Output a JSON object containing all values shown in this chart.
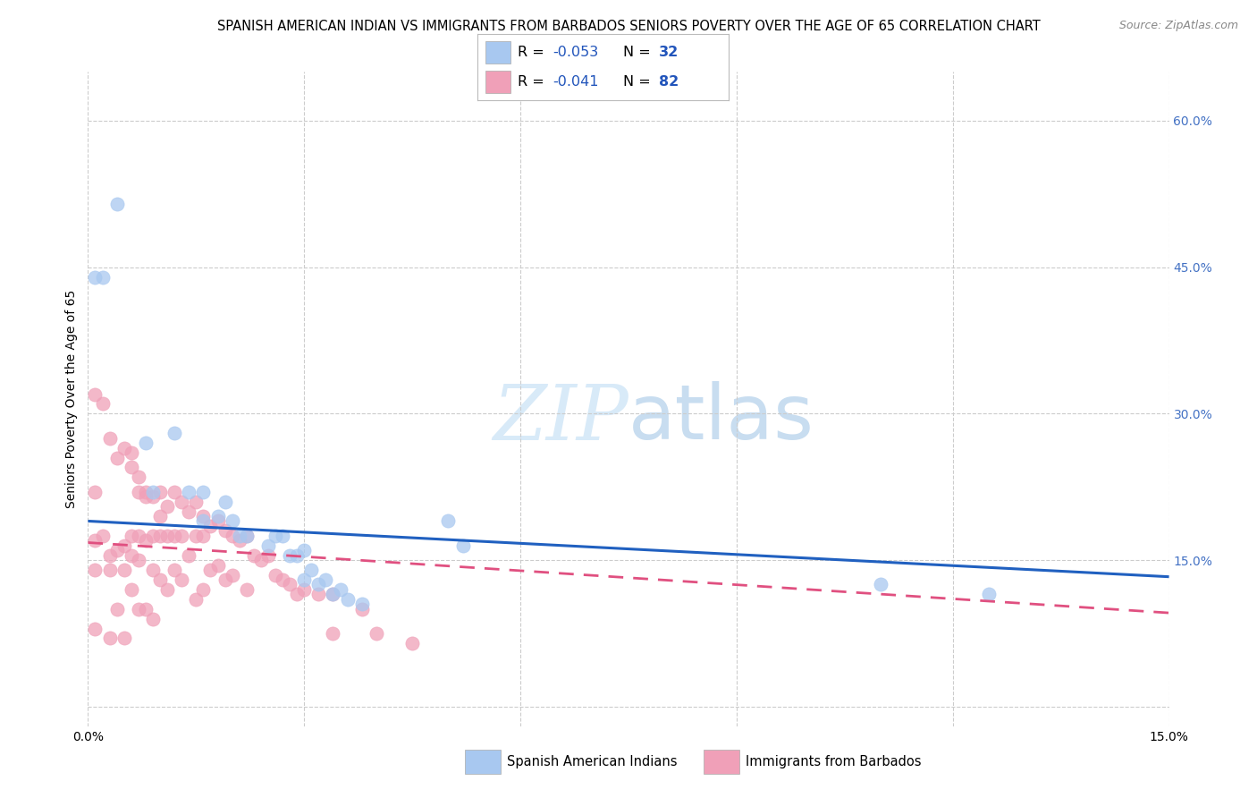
{
  "title": "SPANISH AMERICAN INDIAN VS IMMIGRANTS FROM BARBADOS SENIORS POVERTY OVER THE AGE OF 65 CORRELATION CHART",
  "source": "Source: ZipAtlas.com",
  "ylabel": "Seniors Poverty Over the Age of 65",
  "label1": "Spanish American Indians",
  "label2": "Immigrants from Barbados",
  "legend_R1": "-0.053",
  "legend_N1": "32",
  "legend_R2": "-0.041",
  "legend_N2": "82",
  "x_lim": [
    0.0,
    0.15
  ],
  "y_lim": [
    -0.02,
    0.65
  ],
  "y_ticks": [
    0.0,
    0.15,
    0.3,
    0.45,
    0.6
  ],
  "x_ticks": [
    0.0,
    0.03,
    0.06,
    0.09,
    0.12,
    0.15
  ],
  "background_color": "#ffffff",
  "grid_color": "#cccccc",
  "blue_color": "#a8c8f0",
  "pink_color": "#f0a0b8",
  "blue_line_color": "#2060c0",
  "pink_line_color": "#e05080",
  "title_fontsize": 10.5,
  "source_fontsize": 9,
  "tick_fontsize": 10,
  "ylabel_fontsize": 10,
  "blue_scatter_x": [
    0.004,
    0.002,
    0.001,
    0.008,
    0.009,
    0.012,
    0.014,
    0.016,
    0.016,
    0.018,
    0.019,
    0.02,
    0.021,
    0.022,
    0.025,
    0.026,
    0.027,
    0.028,
    0.029,
    0.03,
    0.03,
    0.031,
    0.032,
    0.033,
    0.034,
    0.035,
    0.036,
    0.038,
    0.05,
    0.052,
    0.11,
    0.125
  ],
  "blue_scatter_y": [
    0.515,
    0.44,
    0.44,
    0.27,
    0.22,
    0.28,
    0.22,
    0.22,
    0.19,
    0.195,
    0.21,
    0.19,
    0.175,
    0.175,
    0.165,
    0.175,
    0.175,
    0.155,
    0.155,
    0.16,
    0.13,
    0.14,
    0.125,
    0.13,
    0.115,
    0.12,
    0.11,
    0.105,
    0.19,
    0.165,
    0.125,
    0.115
  ],
  "pink_scatter_x": [
    0.001,
    0.001,
    0.001,
    0.001,
    0.001,
    0.002,
    0.002,
    0.003,
    0.003,
    0.003,
    0.003,
    0.004,
    0.004,
    0.004,
    0.005,
    0.005,
    0.005,
    0.005,
    0.006,
    0.006,
    0.006,
    0.006,
    0.006,
    0.007,
    0.007,
    0.007,
    0.007,
    0.007,
    0.008,
    0.008,
    0.008,
    0.008,
    0.009,
    0.009,
    0.009,
    0.009,
    0.01,
    0.01,
    0.01,
    0.01,
    0.011,
    0.011,
    0.011,
    0.012,
    0.012,
    0.012,
    0.013,
    0.013,
    0.013,
    0.014,
    0.014,
    0.015,
    0.015,
    0.015,
    0.016,
    0.016,
    0.016,
    0.017,
    0.017,
    0.018,
    0.018,
    0.019,
    0.019,
    0.02,
    0.02,
    0.021,
    0.022,
    0.022,
    0.023,
    0.024,
    0.025,
    0.026,
    0.027,
    0.028,
    0.029,
    0.03,
    0.032,
    0.034,
    0.034,
    0.038,
    0.04,
    0.045
  ],
  "pink_scatter_y": [
    0.32,
    0.22,
    0.17,
    0.14,
    0.08,
    0.31,
    0.175,
    0.275,
    0.155,
    0.14,
    0.07,
    0.255,
    0.16,
    0.1,
    0.265,
    0.165,
    0.14,
    0.07,
    0.26,
    0.245,
    0.175,
    0.155,
    0.12,
    0.235,
    0.22,
    0.175,
    0.15,
    0.1,
    0.22,
    0.215,
    0.17,
    0.1,
    0.215,
    0.175,
    0.14,
    0.09,
    0.22,
    0.195,
    0.175,
    0.13,
    0.205,
    0.175,
    0.12,
    0.22,
    0.175,
    0.14,
    0.21,
    0.175,
    0.13,
    0.2,
    0.155,
    0.21,
    0.175,
    0.11,
    0.195,
    0.175,
    0.12,
    0.185,
    0.14,
    0.19,
    0.145,
    0.18,
    0.13,
    0.175,
    0.135,
    0.17,
    0.175,
    0.12,
    0.155,
    0.15,
    0.155,
    0.135,
    0.13,
    0.125,
    0.115,
    0.12,
    0.115,
    0.115,
    0.075,
    0.1,
    0.075,
    0.065
  ]
}
